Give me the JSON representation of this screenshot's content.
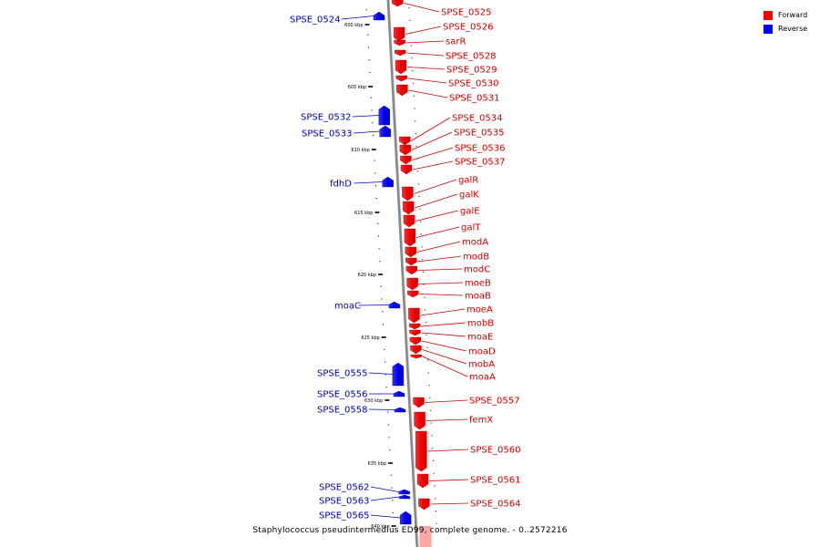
{
  "legend": {
    "items": [
      {
        "label": "Forward",
        "color": "#ff0000"
      },
      {
        "label": "Reverse",
        "color": "#0000ff"
      }
    ]
  },
  "caption": "Staphylococcus pseudintermedius ED99, complete genome. - 0..2572216",
  "colors": {
    "forward": "#ff0000",
    "reverse": "#0000ff",
    "forward_label": "#cc0000",
    "reverse_label": "#0000aa",
    "backbone": "#999999"
  },
  "ticks": [
    "600 kbp",
    "605 kbp",
    "610 kbp",
    "615 kbp",
    "620 kbp",
    "625 kbp",
    "630 kbp",
    "635 kbp",
    "640 kbp"
  ],
  "genes": {
    "reverse": [
      "SPSE_0524",
      "SPSE_0532",
      "SPSE_0533",
      "fdhD",
      "moaC",
      "SPSE_0555",
      "SPSE_0556",
      "SPSE_0558",
      "SPSE_0562",
      "SPSE_0563",
      "SPSE_0565"
    ],
    "forward": [
      "SPSE_0525",
      "SPSE_0526",
      "sarR",
      "SPSE_0528",
      "SPSE_0529",
      "SPSE_0530",
      "SPSE_0531",
      "SPSE_0534",
      "SPSE_0535",
      "SPSE_0536",
      "SPSE_0537",
      "galR",
      "galK",
      "galE",
      "galT",
      "modA",
      "modB",
      "modC",
      "moeB",
      "moaB",
      "moeA",
      "mobB",
      "moaE",
      "moaD",
      "mobA",
      "moaA",
      "SPSE_0557",
      "femX",
      "SPSE_0560",
      "SPSE_0561",
      "SPSE_0564"
    ]
  }
}
